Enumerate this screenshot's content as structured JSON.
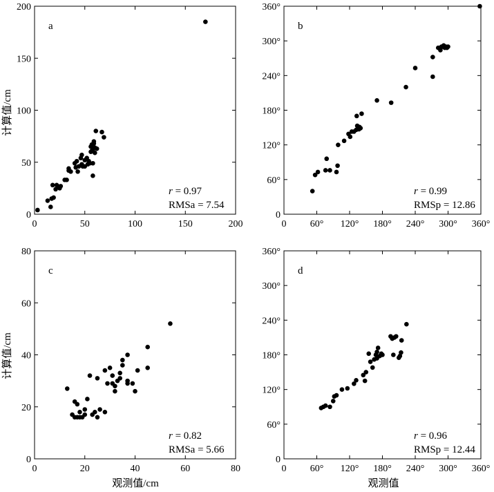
{
  "figure": {
    "ylabel_top": "计算值/cm",
    "ylabel_bottom": "计算值/cm",
    "xlabel_c": "观测值/cm",
    "xlabel_d": "观测值"
  },
  "chart_data": [
    {
      "type": "scatter",
      "panel_label": "a",
      "xlim": [
        0,
        200
      ],
      "ylim": [
        0,
        200
      ],
      "xticks": [
        "0",
        "50",
        "100",
        "150",
        "200"
      ],
      "yticks": [
        "0",
        "50",
        "100",
        "150",
        "200"
      ],
      "xlabel": "",
      "ylabel": "计算值/cm",
      "stats": {
        "r_symbol": "r",
        "r_value": " = 0.97",
        "rms": "RMSa = 7.54"
      },
      "points": [
        [
          3,
          4
        ],
        [
          13,
          13
        ],
        [
          16,
          7
        ],
        [
          17,
          15
        ],
        [
          18,
          28
        ],
        [
          19,
          16
        ],
        [
          21,
          24
        ],
        [
          22,
          28
        ],
        [
          23,
          27
        ],
        [
          25,
          25
        ],
        [
          26,
          27
        ],
        [
          30,
          33
        ],
        [
          32,
          33
        ],
        [
          34,
          42
        ],
        [
          34,
          44
        ],
        [
          36,
          41
        ],
        [
          40,
          49
        ],
        [
          41,
          45
        ],
        [
          42,
          51
        ],
        [
          43,
          41
        ],
        [
          44,
          46
        ],
        [
          46,
          54
        ],
        [
          47,
          48
        ],
        [
          47,
          57
        ],
        [
          48,
          46
        ],
        [
          50,
          46
        ],
        [
          50,
          52
        ],
        [
          52,
          54
        ],
        [
          53,
          48
        ],
        [
          54,
          51
        ],
        [
          55,
          49
        ],
        [
          56,
          60
        ],
        [
          56,
          65
        ],
        [
          57,
          61
        ],
        [
          57,
          67
        ],
        [
          58,
          37
        ],
        [
          58,
          49
        ],
        [
          58,
          62
        ],
        [
          59,
          68
        ],
        [
          59,
          70
        ],
        [
          60,
          59
        ],
        [
          60,
          64
        ],
        [
          61,
          80
        ],
        [
          62,
          63
        ],
        [
          67,
          79
        ],
        [
          69,
          74
        ],
        [
          170,
          185
        ]
      ]
    },
    {
      "type": "scatter",
      "panel_label": "b",
      "xlim": [
        0,
        360
      ],
      "ylim": [
        0,
        360
      ],
      "xticks": [
        "0",
        "60°",
        "120°",
        "180°",
        "240°",
        "300°",
        "360°"
      ],
      "yticks": [
        "0",
        "60°",
        "120°",
        "180°",
        "240°",
        "300°",
        "360°"
      ],
      "xlabel": "",
      "ylabel": "",
      "stats": {
        "r_symbol": "r",
        "r_value": " = 0.99",
        "rms": "RMSp = 12.86"
      },
      "points": [
        [
          52,
          40
        ],
        [
          57,
          68
        ],
        [
          62,
          73
        ],
        [
          76,
          76
        ],
        [
          78,
          96
        ],
        [
          84,
          76
        ],
        [
          96,
          73
        ],
        [
          98,
          84
        ],
        [
          99,
          120
        ],
        [
          110,
          127
        ],
        [
          118,
          139
        ],
        [
          121,
          134
        ],
        [
          124,
          143
        ],
        [
          128,
          143
        ],
        [
          132,
          146
        ],
        [
          133,
          170
        ],
        [
          134,
          153
        ],
        [
          137,
          147
        ],
        [
          138,
          151
        ],
        [
          140,
          149
        ],
        [
          142,
          174
        ],
        [
          170,
          197
        ],
        [
          196,
          193
        ],
        [
          223,
          220
        ],
        [
          240,
          253
        ],
        [
          272,
          238
        ],
        [
          272,
          272
        ],
        [
          282,
          288
        ],
        [
          286,
          284
        ],
        [
          288,
          290
        ],
        [
          290,
          290
        ],
        [
          292,
          292
        ],
        [
          294,
          288
        ],
        [
          296,
          290
        ],
        [
          298,
          288
        ],
        [
          300,
          290
        ],
        [
          358,
          360
        ]
      ]
    },
    {
      "type": "scatter",
      "panel_label": "c",
      "xlim": [
        0,
        80
      ],
      "ylim": [
        0,
        80
      ],
      "xticks": [
        "0",
        "20",
        "40",
        "60",
        "80"
      ],
      "yticks": [
        "0",
        "20",
        "40",
        "60",
        "80"
      ],
      "xlabel": "观测值/cm",
      "ylabel": "计算值/cm",
      "stats": {
        "r_symbol": "r",
        "r_value": " = 0.82",
        "rms": "RMSa = 5.66"
      },
      "points": [
        [
          13,
          27
        ],
        [
          15,
          17
        ],
        [
          16,
          16
        ],
        [
          16,
          22
        ],
        [
          17,
          16
        ],
        [
          17,
          21
        ],
        [
          18,
          16
        ],
        [
          18,
          18
        ],
        [
          19,
          16
        ],
        [
          20,
          17
        ],
        [
          20,
          19
        ],
        [
          21,
          23
        ],
        [
          22,
          32
        ],
        [
          23,
          17
        ],
        [
          24,
          18
        ],
        [
          25,
          16
        ],
        [
          25,
          31
        ],
        [
          26,
          19
        ],
        [
          28,
          18
        ],
        [
          28,
          34
        ],
        [
          29,
          29
        ],
        [
          30,
          35
        ],
        [
          31,
          29
        ],
        [
          31,
          32
        ],
        [
          32,
          26
        ],
        [
          32,
          28
        ],
        [
          33,
          30
        ],
        [
          34,
          31
        ],
        [
          34,
          33
        ],
        [
          35,
          36
        ],
        [
          35,
          38
        ],
        [
          37,
          29
        ],
        [
          37,
          30
        ],
        [
          37,
          40
        ],
        [
          39,
          29
        ],
        [
          40,
          26
        ],
        [
          41,
          34
        ],
        [
          45,
          35
        ],
        [
          45,
          43
        ],
        [
          54,
          52
        ]
      ]
    },
    {
      "type": "scatter",
      "panel_label": "d",
      "xlim": [
        0,
        360
      ],
      "ylim": [
        0,
        360
      ],
      "xticks": [
        "0",
        "60°",
        "120°",
        "180°",
        "240°",
        "300°",
        "360°"
      ],
      "yticks": [
        "0",
        "60°",
        "120°",
        "180°",
        "240°",
        "300°",
        "360°"
      ],
      "xlabel": "观测值",
      "ylabel": "",
      "stats": {
        "r_symbol": "r",
        "r_value": " = 0.96",
        "rms": "RMSp = 12.44"
      },
      "points": [
        [
          68,
          88
        ],
        [
          72,
          90
        ],
        [
          76,
          92
        ],
        [
          84,
          90
        ],
        [
          90,
          100
        ],
        [
          92,
          108
        ],
        [
          96,
          110
        ],
        [
          106,
          120
        ],
        [
          116,
          122
        ],
        [
          128,
          130
        ],
        [
          132,
          136
        ],
        [
          145,
          145
        ],
        [
          148,
          135
        ],
        [
          150,
          150
        ],
        [
          155,
          182
        ],
        [
          158,
          168
        ],
        [
          162,
          158
        ],
        [
          165,
          172
        ],
        [
          168,
          180
        ],
        [
          170,
          174
        ],
        [
          170,
          185
        ],
        [
          172,
          192
        ],
        [
          175,
          178
        ],
        [
          178,
          182
        ],
        [
          180,
          180
        ],
        [
          195,
          212
        ],
        [
          198,
          208
        ],
        [
          200,
          180
        ],
        [
          202,
          210
        ],
        [
          205,
          212
        ],
        [
          210,
          175
        ],
        [
          212,
          178
        ],
        [
          214,
          184
        ],
        [
          215,
          205
        ],
        [
          224,
          233
        ]
      ]
    }
  ]
}
